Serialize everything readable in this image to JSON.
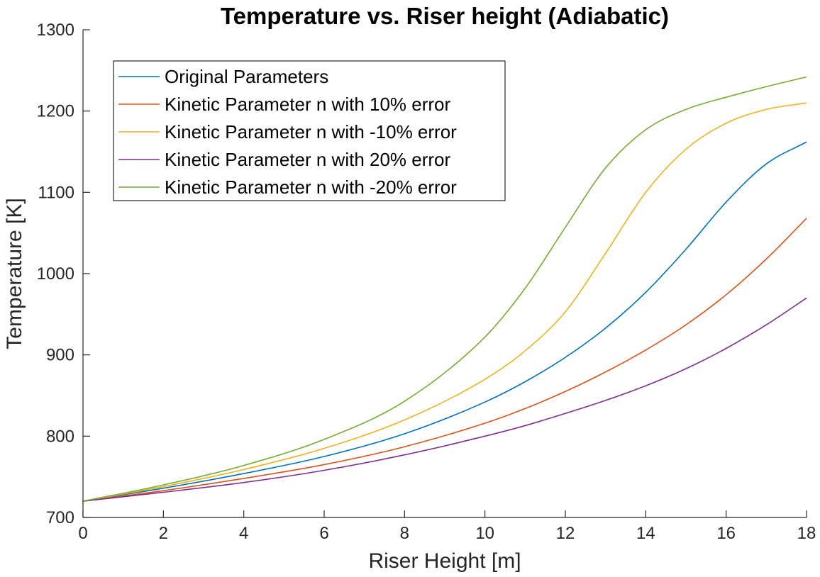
{
  "chart_data": {
    "type": "line",
    "title": "Temperature vs. Riser height (Adiabatic)",
    "xlabel": "Riser Height [m]",
    "ylabel": "Temperature [K]",
    "xlim": [
      0,
      18
    ],
    "ylim": [
      700,
      1300
    ],
    "xticks": [
      0,
      2,
      4,
      6,
      8,
      10,
      12,
      14,
      16,
      18
    ],
    "yticks": [
      700,
      800,
      900,
      1000,
      1100,
      1200,
      1300
    ],
    "grid": false,
    "legend_position": "top-left",
    "x": [
      0,
      2,
      4,
      6,
      8,
      10,
      11,
      12,
      13,
      14,
      15,
      16,
      17,
      18
    ],
    "series": [
      {
        "name": "Original Parameters",
        "color": "#0072BD",
        "values": [
          720,
          736,
          754,
          775,
          803,
          842,
          867,
          897,
          933,
          977,
          1030,
          1088,
          1135,
          1162
        ]
      },
      {
        "name": "Kinetic Parameter n with 10% error",
        "color": "#D95319",
        "values": [
          720,
          733,
          748,
          765,
          787,
          816,
          834,
          855,
          879,
          906,
          937,
          974,
          1018,
          1068
        ]
      },
      {
        "name": "Kinetic Parameter n with -10% error",
        "color": "#EDB120",
        "values": [
          720,
          738,
          759,
          785,
          820,
          870,
          905,
          953,
          1025,
          1100,
          1153,
          1185,
          1202,
          1210
        ]
      },
      {
        "name": "Kinetic Parameter n with 20% error",
        "color": "#7E2F8E",
        "values": [
          720,
          731,
          743,
          758,
          777,
          800,
          813,
          828,
          844,
          862,
          883,
          908,
          937,
          970
        ]
      },
      {
        "name": "Kinetic Parameter n with -20% error",
        "color": "#77AC30",
        "values": [
          720,
          740,
          764,
          796,
          843,
          922,
          982,
          1057,
          1130,
          1177,
          1202,
          1217,
          1230,
          1242
        ]
      }
    ]
  }
}
